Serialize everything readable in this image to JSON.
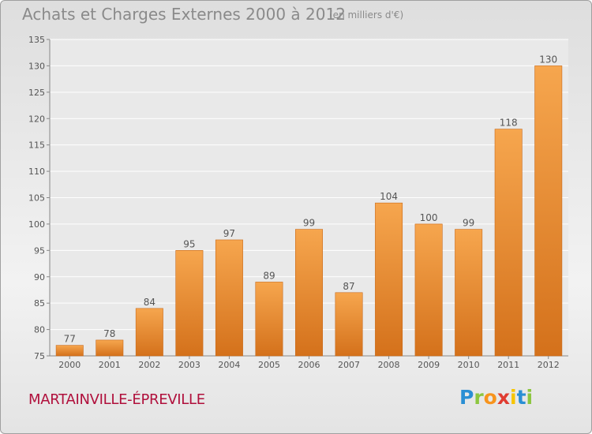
{
  "chart_data": {
    "type": "bar",
    "title": "Achats et Charges Externes 2000 à 2012",
    "subtitle": "(en milliers d'€)",
    "categories": [
      "2000",
      "2001",
      "2002",
      "2003",
      "2004",
      "2005",
      "2006",
      "2007",
      "2008",
      "2009",
      "2010",
      "2011",
      "2012"
    ],
    "values": [
      77,
      78,
      84,
      95,
      97,
      89,
      99,
      87,
      104,
      100,
      99,
      118,
      130
    ],
    "ylim": [
      75,
      135
    ],
    "yticks": [
      75,
      80,
      85,
      90,
      95,
      100,
      105,
      110,
      115,
      120,
      125,
      130,
      135
    ],
    "grid": true,
    "legend": "none",
    "colors": {
      "bar_top": "#f6a64e",
      "bar_bottom": "#d4711b",
      "bar_edge": "#c96a1a",
      "grid": "#ffffff"
    }
  },
  "commune": "MARTAINVILLE-ÉPREVILLE",
  "logo": {
    "letters": [
      "P",
      "r",
      "o",
      "x",
      "i",
      "t",
      "i"
    ],
    "colors": [
      "#2a8fd4",
      "#8cc63f",
      "#f7941d",
      "#e03c31",
      "#f7c500",
      "#2a8fd4",
      "#8cc63f"
    ]
  }
}
